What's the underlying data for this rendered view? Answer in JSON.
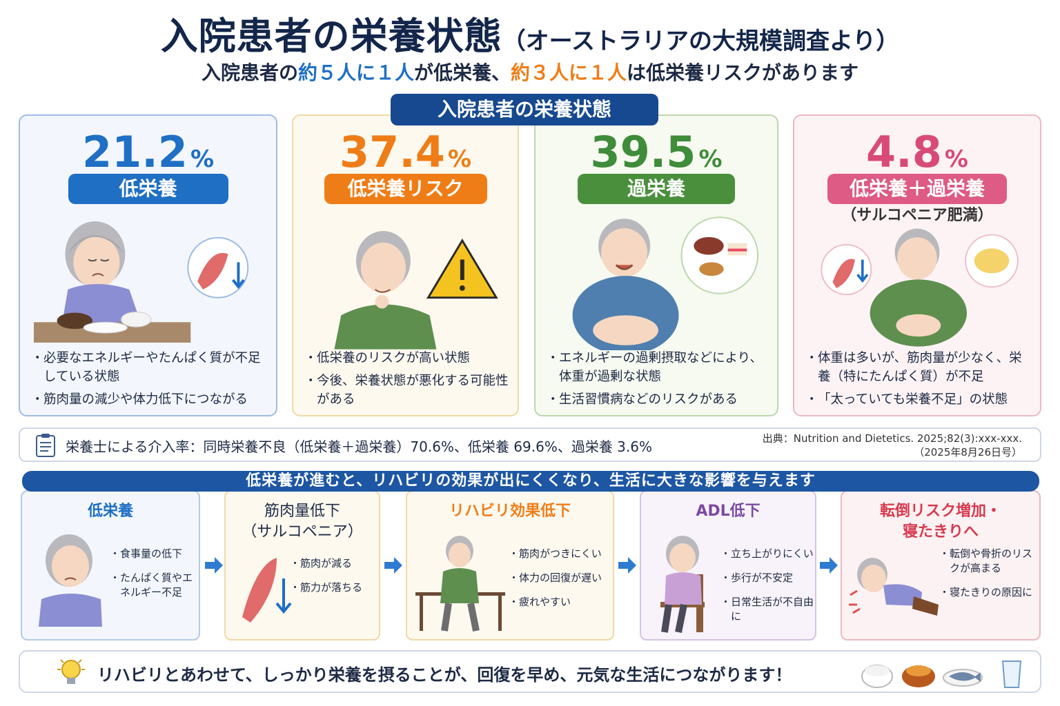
{
  "header": {
    "title_main": "入院患者の栄養状態",
    "title_sub": "（オーストラリアの大規模調査より）",
    "subtitle_a": "入院患者の",
    "subtitle_b": "約５人に１人",
    "subtitle_c": "が低栄養、",
    "subtitle_d": "約３人に１人",
    "subtitle_e": "は低栄養リスクがあります"
  },
  "section_label": "入院患者の栄養状態",
  "cards": [
    {
      "value": "21.2",
      "unit": "%",
      "label": "低栄養",
      "note": "",
      "bullets": [
        "必要なエネルギーやたんぱく質が不足している状態",
        "筋肉量の減少や体力低下につながる"
      ],
      "color": "#1f6fc4"
    },
    {
      "value": "37.4",
      "unit": "%",
      "label": "低栄養リスク",
      "note": "",
      "bullets": [
        "低栄養のリスクが高い状態",
        "今後、栄養状態が悪化する可能性がある"
      ],
      "color": "#ef7d17"
    },
    {
      "value": "39.5",
      "unit": "%",
      "label": "過栄養",
      "note": "",
      "bullets": [
        "エネルギーの過剰摂取などにより、体重が過剰な状態",
        "生活習慣病などのリスクがある"
      ],
      "color": "#3f8c3a"
    },
    {
      "value": "4.8",
      "unit": "%",
      "label": "低栄養＋過栄養",
      "note": "（サルコペニア肥満）",
      "bullets": [
        "体重は多いが、筋肉量が少なく、栄養（特にたんぱく質）が不足",
        "「太っていても栄養不足」の状態"
      ],
      "color": "#d84a78"
    }
  ],
  "info": {
    "rate_text": "栄養士による介入率：同時栄養不良（低栄養＋過栄養）70.6%、低栄養 69.6%、過栄養 3.6%",
    "source_line1": "出典：Nutrition and Dietetics. 2025;82(3):xxx-xxx.",
    "source_line2": "（2025年8月26日号）",
    "icon": "clipboard-icon"
  },
  "banner": "低栄養が進むと、リハビリの効果が出にくくなり、生活に大きな影響を与えます",
  "steps": [
    {
      "title_1": "低栄養",
      "title_2": "",
      "points": [
        "食事量の低下",
        "たんぱく質やエネルギー不足"
      ]
    },
    {
      "title_1": "筋肉量低下",
      "title_2": "（サルコペニア）",
      "points": [
        "筋肉が減る",
        "筋力が落ちる"
      ]
    },
    {
      "title_1": "リハビリ効果低下",
      "title_2": "",
      "points": [
        "筋肉がつきにくい",
        "体力の回復が遅い",
        "疲れやすい"
      ]
    },
    {
      "title_1": "ADL低下",
      "title_2": "",
      "points": [
        "立ち上がりにくい",
        "歩行が不安定",
        "日常生活が不自由に"
      ]
    },
    {
      "title_1": "転倒リスク増加・",
      "title_2": "寝たきりへ",
      "points": [
        "転倒や骨折のリスクが高まる",
        "寝たきりの原因に"
      ]
    }
  ],
  "bottom": {
    "message": "リハビリとあわせて、しっかり栄養を摂ることが、回復を早め、元気な生活につながります！",
    "icon": "lightbulb-icon"
  }
}
